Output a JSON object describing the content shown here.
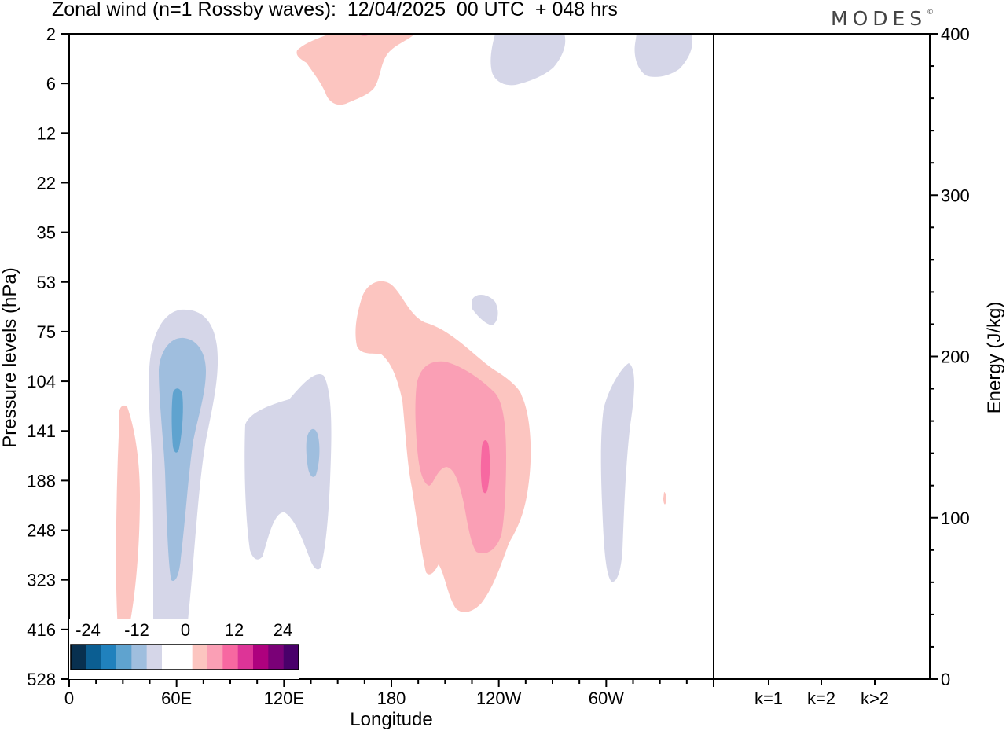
{
  "header": {
    "title": "Zonal wind (n=1 Rossby waves):  12/04/2025  00 UTC  + 048 hrs",
    "logo": "MODES",
    "logo_mark": "©"
  },
  "chart_data": [
    {
      "type": "heatmap",
      "title": "Zonal wind (n=1 Rossby waves):  12/04/2025  00 UTC  + 048 hrs",
      "xlabel": "Longitude",
      "ylabel": "Pressure levels (hPa)",
      "x_ticks": [
        "0",
        "60E",
        "120E",
        "180",
        "120W",
        "60W"
      ],
      "x_tick_degrees": [
        0,
        60,
        120,
        180,
        240,
        300
      ],
      "xlim": [
        0,
        360
      ],
      "y_ticks": [
        "2",
        "6",
        "12",
        "22",
        "35",
        "53",
        "75",
        "104",
        "141",
        "188",
        "248",
        "323",
        "416",
        "528"
      ],
      "colorbar": {
        "labels": [
          "-24",
          "-12",
          "0",
          "12",
          "24"
        ],
        "colors": [
          "#08304f",
          "#0b5e92",
          "#2081bd",
          "#5fa3cf",
          "#9fbede",
          "#d5d6e8",
          "#ffffff",
          "#ffffff",
          "#fcc5c0",
          "#fa9fb5",
          "#f768a1",
          "#dd3497",
          "#ae017e",
          "#7a0177",
          "#49006a"
        ]
      },
      "regions": [
        {
          "sign": "positive",
          "level": 1,
          "lon": 33,
          "level_top": "141",
          "level_bottom": "416"
        },
        {
          "sign": "negative",
          "level": 1,
          "lon": 60,
          "level_top": "75",
          "level_bottom": "528"
        },
        {
          "sign": "negative",
          "level": 2,
          "lon": 60,
          "level_top": "104",
          "level_bottom": "323"
        },
        {
          "sign": "negative",
          "level": 3,
          "lon": 60,
          "level_top": "104",
          "level_bottom": "141"
        },
        {
          "sign": "negative",
          "level": 1,
          "lon": 130,
          "level_top": "104",
          "level_bottom": "323"
        },
        {
          "sign": "negative",
          "level": 2,
          "lon": 136,
          "level_top": "141",
          "level_bottom": "188"
        },
        {
          "sign": "positive",
          "level": 1,
          "lon": 200,
          "level_top": "53",
          "level_bottom": "416"
        },
        {
          "sign": "positive",
          "level": 2,
          "lon": 210,
          "level_top": "104",
          "level_bottom": "248"
        },
        {
          "sign": "positive",
          "level": 3,
          "lon": 233,
          "level_top": "141",
          "level_bottom": "188"
        },
        {
          "sign": "negative",
          "level": 1,
          "lon": 232,
          "level_top": "53",
          "level_bottom": "75"
        },
        {
          "sign": "positive",
          "level": 1,
          "lon": 170,
          "level_top": "2",
          "level_bottom": "6"
        },
        {
          "sign": "negative",
          "level": 1,
          "lon": 255,
          "level_top": "2",
          "level_bottom": "6"
        },
        {
          "sign": "negative",
          "level": 1,
          "lon": 335,
          "level_top": "2",
          "level_bottom": "6"
        },
        {
          "sign": "negative",
          "level": 1,
          "lon": 303,
          "level_top": "104",
          "level_bottom": "323"
        },
        {
          "sign": "positive",
          "level": 1,
          "lon": 333,
          "level_top": "188",
          "level_bottom": "248"
        }
      ]
    },
    {
      "type": "bar",
      "ylabel": "Energy (J/kg)",
      "categories": [
        "k=1",
        "k=2",
        "k>2"
      ],
      "values": [
        0.3,
        0.1,
        0.2
      ],
      "ylim": [
        0,
        400
      ],
      "y_ticks": [
        "0",
        "100",
        "200",
        "300",
        "400"
      ]
    }
  ]
}
